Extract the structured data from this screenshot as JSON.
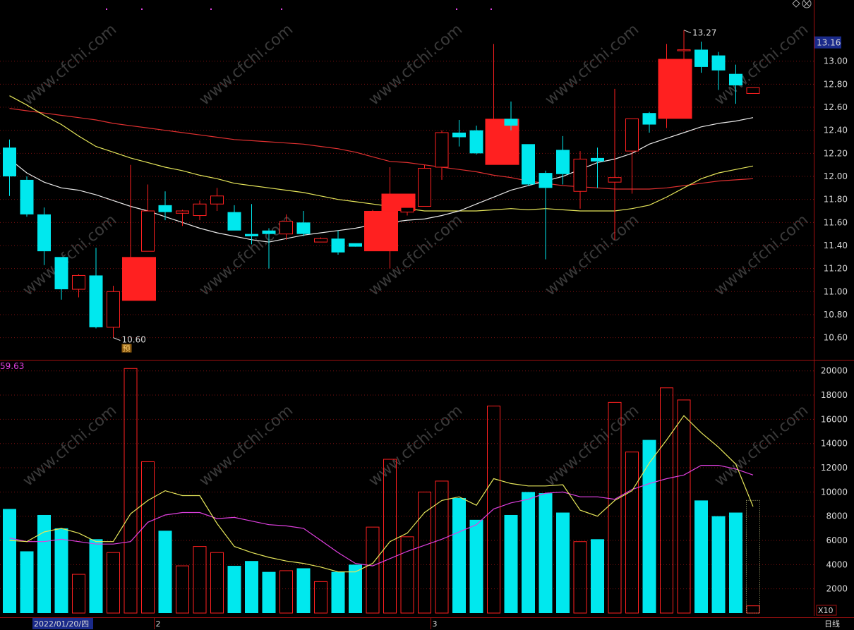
{
  "chart_data": [
    {
      "type": "candlestick",
      "name": "price",
      "period_label": "日线",
      "current_price": "13.16",
      "high_label": "13.27",
      "low_label": "10.60",
      "marker_label": "预",
      "ylim": [
        10.42,
        13.47
      ],
      "y_ticks": [
        "10.60",
        "10.80",
        "11.00",
        "11.20",
        "11.40",
        "11.60",
        "11.80",
        "12.00",
        "12.20",
        "12.40",
        "12.60",
        "12.80",
        "13.00"
      ],
      "candles": [
        {
          "o": 12.25,
          "h": 12.32,
          "l": 11.83,
          "c": 12.0
        },
        {
          "o": 11.97,
          "h": 12.0,
          "l": 11.65,
          "c": 11.67
        },
        {
          "o": 11.67,
          "h": 11.73,
          "l": 11.23,
          "c": 11.35
        },
        {
          "o": 11.3,
          "h": 11.3,
          "l": 10.93,
          "c": 11.02
        },
        {
          "o": 11.02,
          "h": 11.15,
          "l": 10.95,
          "c": 11.14
        },
        {
          "o": 11.14,
          "h": 11.38,
          "l": 10.68,
          "c": 10.69
        },
        {
          "o": 10.69,
          "h": 11.05,
          "l": 10.6,
          "c": 11.0
        },
        {
          "o": 10.92,
          "h": 12.1,
          "l": 10.92,
          "c": 11.3
        },
        {
          "o": 11.35,
          "h": 11.93,
          "l": 11.35,
          "c": 11.7
        },
        {
          "o": 11.75,
          "h": 11.87,
          "l": 11.62,
          "c": 11.69
        },
        {
          "o": 11.68,
          "h": 11.71,
          "l": 11.57,
          "c": 11.7
        },
        {
          "o": 11.66,
          "h": 11.79,
          "l": 11.62,
          "c": 11.76
        },
        {
          "o": 11.76,
          "h": 11.9,
          "l": 11.7,
          "c": 11.83
        },
        {
          "o": 11.69,
          "h": 11.75,
          "l": 11.53,
          "c": 11.53
        },
        {
          "o": 11.5,
          "h": 11.76,
          "l": 11.41,
          "c": 11.48
        },
        {
          "o": 11.53,
          "h": 11.55,
          "l": 11.2,
          "c": 11.5
        },
        {
          "o": 11.5,
          "h": 11.67,
          "l": 11.45,
          "c": 11.61
        },
        {
          "o": 11.6,
          "h": 11.7,
          "l": 11.48,
          "c": 11.5
        },
        {
          "o": 11.43,
          "h": 11.47,
          "l": 11.43,
          "c": 11.46
        },
        {
          "o": 11.46,
          "h": 11.53,
          "l": 11.32,
          "c": 11.34
        },
        {
          "o": 11.42,
          "h": 11.42,
          "l": 11.4,
          "c": 11.39
        },
        {
          "o": 11.35,
          "h": 11.71,
          "l": 11.35,
          "c": 11.7
        },
        {
          "o": 11.7,
          "h": 12.08,
          "l": 11.2,
          "c": 11.85
        },
        {
          "o": 11.69,
          "h": 11.73,
          "l": 11.66,
          "c": 11.73
        },
        {
          "o": 11.74,
          "h": 12.1,
          "l": 11.74,
          "c": 12.07
        },
        {
          "o": 12.08,
          "h": 12.4,
          "l": 11.97,
          "c": 12.38
        },
        {
          "o": 12.38,
          "h": 12.49,
          "l": 12.26,
          "c": 12.34
        },
        {
          "o": 12.4,
          "h": 12.44,
          "l": 12.19,
          "c": 12.2
        },
        {
          "o": 12.1,
          "h": 13.15,
          "l": 12.1,
          "c": 12.5
        },
        {
          "o": 12.5,
          "h": 12.65,
          "l": 12.4,
          "c": 12.44
        },
        {
          "o": 12.28,
          "h": 12.28,
          "l": 11.92,
          "c": 11.93
        },
        {
          "o": 12.03,
          "h": 12.05,
          "l": 11.28,
          "c": 11.9
        },
        {
          "o": 12.23,
          "h": 12.35,
          "l": 11.93,
          "c": 12.02
        },
        {
          "o": 11.87,
          "h": 12.22,
          "l": 11.72,
          "c": 12.15
        },
        {
          "o": 12.16,
          "h": 12.25,
          "l": 11.9,
          "c": 12.13
        },
        {
          "o": 11.95,
          "h": 12.76,
          "l": 11.45,
          "c": 11.99
        },
        {
          "o": 12.22,
          "h": 12.5,
          "l": 11.85,
          "c": 12.5
        },
        {
          "o": 12.55,
          "h": 12.56,
          "l": 12.38,
          "c": 12.45
        },
        {
          "o": 12.5,
          "h": 13.15,
          "l": 12.42,
          "c": 13.02
        },
        {
          "o": 13.1,
          "h": 13.27,
          "l": 12.68,
          "c": 13.1
        },
        {
          "o": 13.1,
          "h": 13.17,
          "l": 12.9,
          "c": 12.95
        },
        {
          "o": 13.05,
          "h": 13.08,
          "l": 12.75,
          "c": 12.92
        },
        {
          "o": 12.89,
          "h": 12.97,
          "l": 12.63,
          "c": 12.79
        },
        {
          "o": 12.72,
          "h": 12.77,
          "l": 12.72,
          "c": 12.77
        }
      ],
      "ma_white": [
        12.15,
        12.03,
        11.95,
        11.9,
        11.88,
        11.84,
        11.79,
        11.74,
        11.7,
        11.65,
        11.6,
        11.55,
        11.51,
        11.48,
        11.45,
        11.43,
        11.46,
        11.49,
        11.51,
        11.53,
        11.55,
        11.58,
        11.6,
        11.62,
        11.63,
        11.66,
        11.7,
        11.76,
        11.82,
        11.88,
        11.92,
        11.96,
        12.0,
        12.06,
        12.12,
        12.15,
        12.2,
        12.28,
        12.33,
        12.38,
        12.43,
        12.46,
        12.48,
        12.51
      ],
      "ma_yellow": [
        12.7,
        12.62,
        12.53,
        12.45,
        12.35,
        12.26,
        12.21,
        12.16,
        12.12,
        12.08,
        12.05,
        12.01,
        11.98,
        11.94,
        11.92,
        11.9,
        11.88,
        11.86,
        11.83,
        11.8,
        11.78,
        11.76,
        11.74,
        11.72,
        11.7,
        11.7,
        11.7,
        11.7,
        11.71,
        11.72,
        11.71,
        11.72,
        11.71,
        11.7,
        11.7,
        11.7,
        11.72,
        11.75,
        11.82,
        11.9,
        11.98,
        12.03,
        12.06,
        12.09
      ],
      "ma_red": [
        12.59,
        12.57,
        12.55,
        12.53,
        12.51,
        12.49,
        12.46,
        12.44,
        12.42,
        12.4,
        12.38,
        12.36,
        12.34,
        12.32,
        12.31,
        12.3,
        12.29,
        12.28,
        12.26,
        12.24,
        12.21,
        12.17,
        12.13,
        12.12,
        12.1,
        12.08,
        12.06,
        12.04,
        12.01,
        11.99,
        11.96,
        11.94,
        11.92,
        11.91,
        11.9,
        11.89,
        11.89,
        11.89,
        11.9,
        11.92,
        11.94,
        11.96,
        11.97,
        11.98
      ]
    },
    {
      "type": "bar",
      "name": "volume",
      "indicator_value": "59.63",
      "scale_label": "X10",
      "ylim": [
        0,
        20800
      ],
      "y_ticks": [
        "2000",
        "4000",
        "6000",
        "8000",
        "10000",
        "12000",
        "14000",
        "16000",
        "18000",
        "20000"
      ],
      "values": [
        8600,
        5100,
        8100,
        7000,
        3200,
        6100,
        5000,
        20200,
        12500,
        6800,
        3900,
        5500,
        5000,
        3900,
        4300,
        3400,
        3500,
        3700,
        2600,
        3400,
        4000,
        7100,
        12700,
        6300,
        10000,
        10900,
        9500,
        7700,
        17100,
        8100,
        10000,
        9900,
        8300,
        5900,
        6100,
        17400,
        13300,
        14300,
        18600,
        17600,
        9300,
        8000,
        8300,
        600
      ],
      "ma_yellow": [
        6000,
        5900,
        6700,
        7000,
        6600,
        5900,
        5900,
        8200,
        9300,
        10100,
        9700,
        9700,
        7400,
        5500,
        5000,
        4600,
        4300,
        4100,
        3800,
        3400,
        3400,
        4100,
        5900,
        6600,
        8300,
        9300,
        9600,
        8900,
        11100,
        10700,
        10500,
        10500,
        10600,
        8500,
        8000,
        9300,
        10100,
        12400,
        14300,
        16300,
        14900,
        13700,
        12300,
        8800
      ],
      "ma_magenta": [
        6200,
        5900,
        5900,
        6100,
        5900,
        5700,
        5700,
        5900,
        7500,
        8100,
        8300,
        8300,
        7800,
        7900,
        7600,
        7300,
        7200,
        7000,
        6000,
        5000,
        4100,
        3900,
        4500,
        5100,
        5600,
        6100,
        6700,
        7300,
        8600,
        9100,
        9400,
        9900,
        10000,
        9600,
        9600,
        9400,
        10200,
        10700,
        11100,
        11400,
        12200,
        12200,
        11900,
        11400
      ]
    }
  ],
  "x_axis": {
    "date_label": "2022/01/20/四",
    "month_labels": [
      {
        "index": 9,
        "text": "2"
      },
      {
        "index": 25,
        "text": "3"
      }
    ]
  },
  "watermark": "www.cfchi.com",
  "colors": {
    "up": "#ff2020",
    "down": "#00e8ee",
    "ma_white": "#e8e8e8",
    "ma_yellow": "#e6e65a",
    "ma_red": "#e03030",
    "vma_yellow": "#e6e65a",
    "vma_magenta": "#e040e0",
    "grid": "#7a1010",
    "axis": "#a01010",
    "text": "#d9d9d9",
    "date_bg": "#1a2a8a",
    "price_box": "#1a2a8a"
  }
}
